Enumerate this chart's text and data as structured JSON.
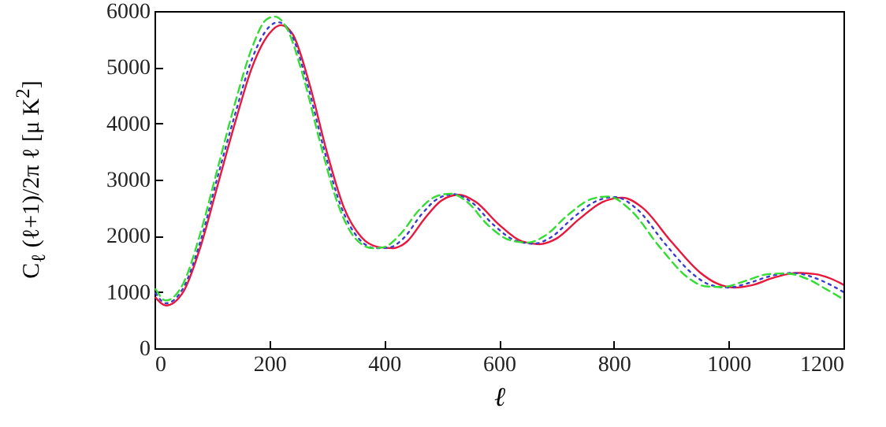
{
  "chart_data": {
    "type": "line",
    "xlabel": "ℓ",
    "ylabel": "C$_{ℓ}$ (ℓ+1)/2π ℓ [μ K$^{2}$]",
    "xlim": [
      0,
      1200
    ],
    "xticks": [
      0,
      200,
      400,
      600,
      800,
      1000,
      1200
    ],
    "ylim": [
      0,
      6000
    ],
    "yticks": [
      0,
      1000,
      2000,
      3000,
      4000,
      5000,
      6000
    ],
    "grid": false,
    "series": [
      {
        "color": "#e8173c",
        "line_style": "solid",
        "x": [
          2,
          20,
          50,
          80,
          110,
          140,
          170,
          200,
          220,
          240,
          270,
          300,
          330,
          360,
          390,
          415,
          440,
          470,
          500,
          530,
          560,
          600,
          640,
          670,
          700,
          740,
          780,
          815,
          850,
          900,
          950,
          980,
          1010,
          1040,
          1080,
          1120,
          1150,
          1180,
          1200
        ],
        "values": [
          900,
          760,
          1000,
          1800,
          2900,
          4000,
          5000,
          5600,
          5750,
          5600,
          4700,
          3500,
          2500,
          1980,
          1800,
          1780,
          1900,
          2300,
          2630,
          2730,
          2600,
          2200,
          1900,
          1850,
          1950,
          2300,
          2600,
          2680,
          2500,
          1900,
          1350,
          1150,
          1080,
          1120,
          1260,
          1340,
          1320,
          1230,
          1130
        ]
      },
      {
        "color": "#3b3bd0",
        "line_style": "dotted",
        "x": [
          2,
          20,
          50,
          80,
          110,
          140,
          170,
          200,
          215,
          235,
          265,
          295,
          325,
          355,
          385,
          408,
          435,
          465,
          495,
          522,
          552,
          590,
          630,
          660,
          690,
          730,
          770,
          802,
          840,
          890,
          940,
          970,
          1000,
          1035,
          1075,
          1110,
          1145,
          1175,
          1200
        ],
        "values": [
          980,
          800,
          1070,
          1900,
          3050,
          4150,
          5150,
          5720,
          5800,
          5650,
          4750,
          3550,
          2520,
          1960,
          1780,
          1790,
          1970,
          2380,
          2670,
          2740,
          2600,
          2200,
          1910,
          1860,
          1970,
          2330,
          2620,
          2690,
          2480,
          1850,
          1300,
          1120,
          1080,
          1160,
          1290,
          1340,
          1270,
          1140,
          1000
        ]
      },
      {
        "color": "#33dd33",
        "line_style": "dashed",
        "x": [
          2,
          20,
          50,
          80,
          110,
          140,
          170,
          195,
          210,
          230,
          260,
          290,
          320,
          350,
          380,
          400,
          430,
          460,
          490,
          515,
          545,
          580,
          620,
          650,
          680,
          720,
          760,
          790,
          830,
          880,
          930,
          960,
          990,
          1030,
          1070,
          1100,
          1140,
          1170,
          1200
        ],
        "values": [
          1050,
          850,
          1150,
          2050,
          3200,
          4350,
          5350,
          5850,
          5900,
          5700,
          4800,
          3600,
          2550,
          1950,
          1780,
          1800,
          2050,
          2450,
          2700,
          2750,
          2600,
          2200,
          1920,
          1880,
          2000,
          2370,
          2650,
          2700,
          2450,
          1800,
          1250,
          1100,
          1090,
          1200,
          1320,
          1330,
          1220,
          1050,
          870
        ]
      }
    ]
  }
}
